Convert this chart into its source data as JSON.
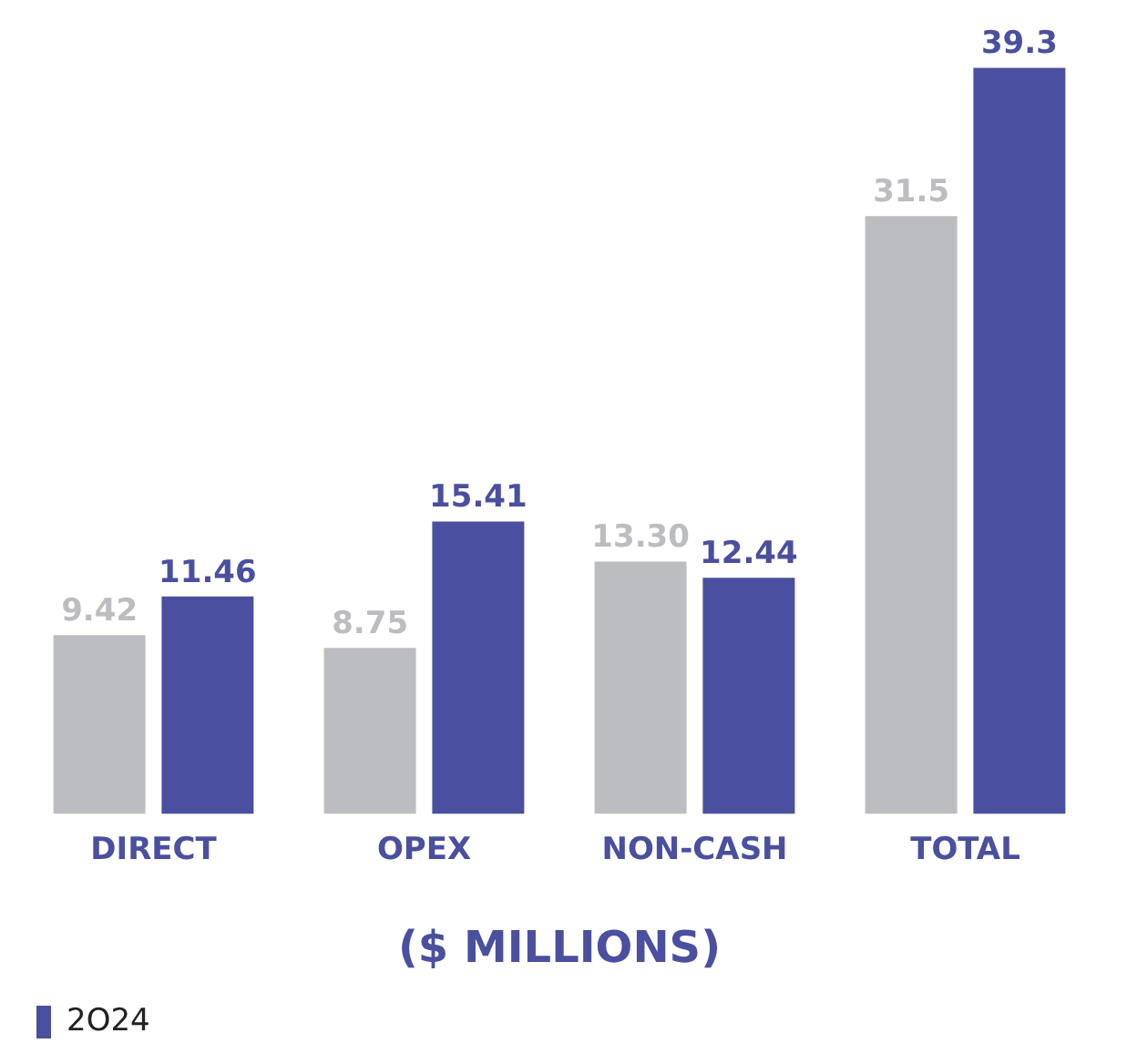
{
  "chart_data": {
    "type": "bar",
    "xlabel": "($ MILLIONS)",
    "categories": [
      "DIRECT",
      "OPEX",
      "NON-CASH",
      "TOTAL"
    ],
    "series": [
      {
        "color": "#bcbdc1",
        "values": [
          9.42,
          8.75,
          13.3,
          31.5
        ],
        "value_labels": [
          "9.42",
          "8.75",
          "13.30",
          "31.5"
        ]
      },
      {
        "name": "2O24",
        "color": "#4a4f9f",
        "values": [
          11.46,
          15.41,
          12.44,
          39.3
        ],
        "value_labels": [
          "11.46",
          "15.41",
          "12.44",
          "39.3"
        ]
      }
    ],
    "grid": false,
    "legend": "bottom left"
  }
}
